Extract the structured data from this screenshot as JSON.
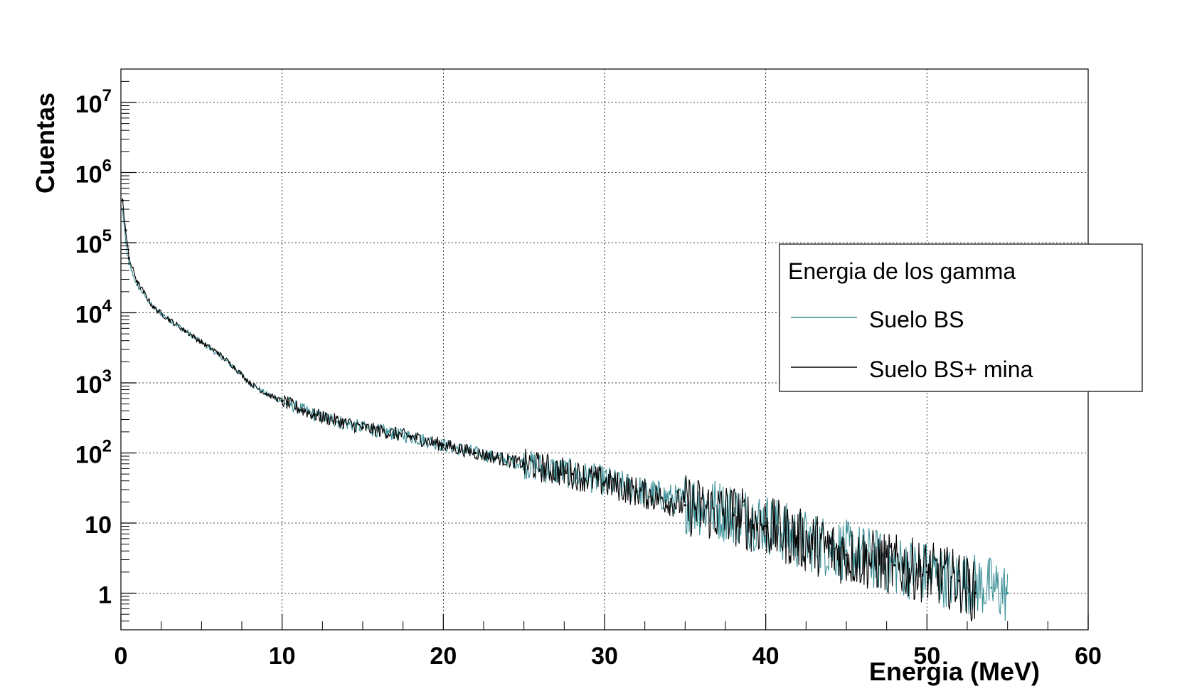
{
  "chart_data": {
    "type": "line",
    "subtype": "histogram",
    "title": "",
    "xlabel": "Energia (MeV)",
    "ylabel": "Cuentas",
    "xlim": [
      0,
      60
    ],
    "ylim": [
      0.3,
      30000000
    ],
    "yscale": "log",
    "grid": true,
    "x_ticks": [
      "0",
      "10",
      "20",
      "30",
      "40",
      "50",
      "60"
    ],
    "y_ticks": [
      {
        "base": "10",
        "exp": "7",
        "value": 10000000
      },
      {
        "base": "10",
        "exp": "6",
        "value": 1000000
      },
      {
        "base": "10",
        "exp": "5",
        "value": 100000
      },
      {
        "base": "10",
        "exp": "4",
        "value": 10000
      },
      {
        "base": "10",
        "exp": "3",
        "value": 1000
      },
      {
        "base": "10",
        "exp": "2",
        "value": 100
      },
      {
        "base": "10",
        "exp": "",
        "value": 10
      },
      {
        "base": "1",
        "exp": "",
        "value": 1
      }
    ],
    "legend": {
      "title": "Energia de los gamma",
      "position": "right",
      "entries": [
        {
          "name": "Suelo BS",
          "color": "#3a8f96"
        },
        {
          "name": "Suelo BS+ mina",
          "color": "#000000"
        }
      ]
    },
    "series": [
      {
        "name": "Suelo BS",
        "color": "#3a8f96",
        "x": [
          0.1,
          0.3,
          0.5,
          1,
          2,
          3,
          4,
          5,
          6,
          7,
          8,
          9,
          10,
          12,
          15,
          18,
          20,
          22,
          25,
          28,
          30,
          32,
          35,
          38,
          40,
          42,
          45,
          48,
          50,
          52,
          54,
          55
        ],
        "y": [
          300000,
          100000,
          50000,
          25000,
          12000,
          8000,
          5500,
          3800,
          2600,
          1700,
          1000,
          700,
          550,
          350,
          230,
          170,
          130,
          100,
          70,
          50,
          40,
          30,
          20,
          14,
          10,
          6,
          4,
          2.5,
          2,
          1.5,
          1.2,
          1
        ]
      },
      {
        "name": "Suelo BS+ mina",
        "color": "#000000",
        "x": [
          0.1,
          0.3,
          0.5,
          1,
          2,
          3,
          4,
          5,
          6,
          7,
          8,
          9,
          10,
          12,
          15,
          18,
          20,
          22,
          25,
          28,
          30,
          32,
          35,
          38,
          40,
          42,
          45,
          48,
          50,
          52,
          53
        ],
        "y": [
          400000,
          150000,
          60000,
          28000,
          12000,
          8000,
          5500,
          3800,
          2700,
          1700,
          1000,
          700,
          550,
          350,
          230,
          170,
          130,
          100,
          70,
          50,
          38,
          28,
          18,
          13,
          9,
          6,
          3.5,
          2.5,
          2,
          1.5,
          1
        ]
      }
    ]
  }
}
